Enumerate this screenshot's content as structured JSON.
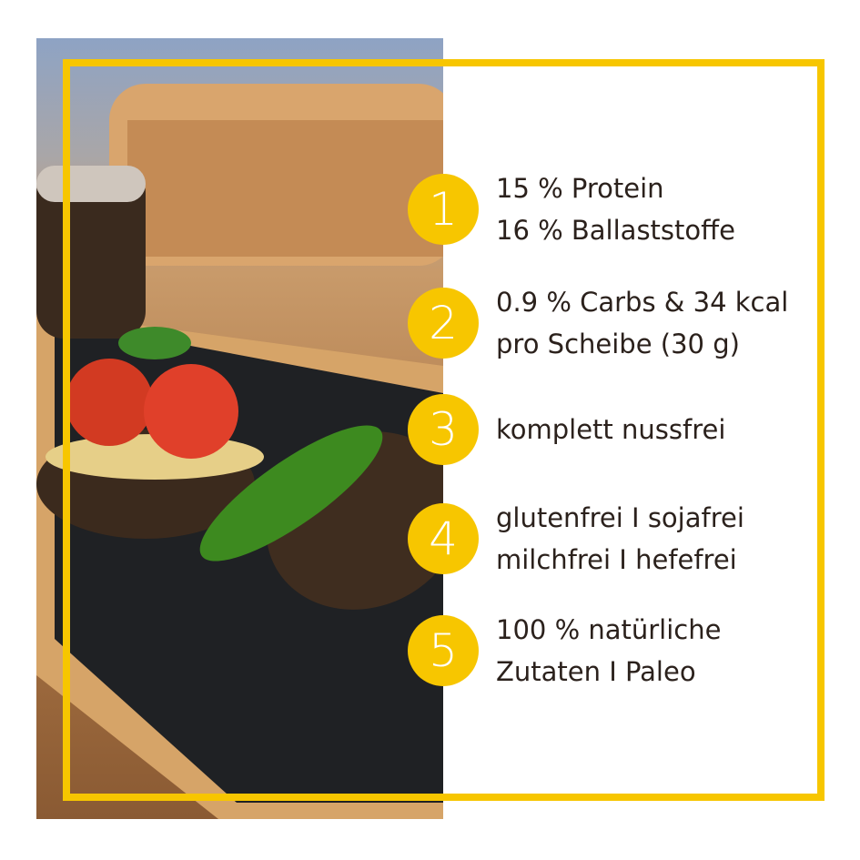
{
  "brand_color": "#f7c600",
  "text_color": "#2b211c",
  "photo": {
    "description_icon": "bread-photo"
  },
  "features": [
    {
      "number": "1",
      "lines": [
        "15 % Protein",
        "16 % Ballaststoffe"
      ]
    },
    {
      "number": "2",
      "lines": [
        "0.9 % Carbs & 34 kcal",
        "pro Scheibe (30 g)"
      ]
    },
    {
      "number": "3",
      "lines": [
        "komplett nussfrei"
      ]
    },
    {
      "number": "4",
      "lines": [
        "glutenfrei I sojafrei",
        "milchfrei I hefefrei"
      ]
    },
    {
      "number": "5",
      "lines": [
        "100 % natürliche",
        "Zutaten I Paleo"
      ]
    }
  ]
}
